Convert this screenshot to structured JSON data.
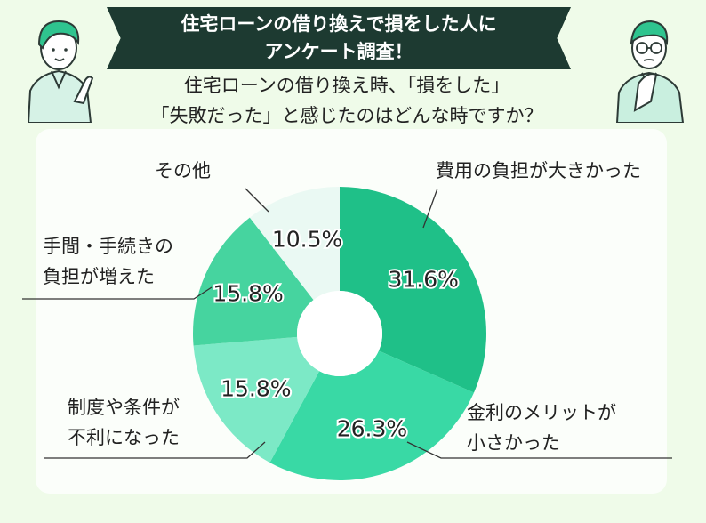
{
  "header": {
    "banner_line1": "住宅ローンの借り換えで損をした人に",
    "banner_line2": "アンケート調査！",
    "question_line1": "住宅ローンの借り換え時、「損をした」",
    "question_line2": "「失敗だった」と感じたのはどんな時ですか？"
  },
  "chart_data": {
    "type": "pie",
    "variant": "donut",
    "categories": [
      "費用の負担が大きかった",
      "金利のメリットが小さかった",
      "制度や条件が不利になった",
      "手間・手続きの負担が増えた",
      "その他"
    ],
    "values": [
      31.6,
      26.3,
      15.8,
      15.8,
      10.5
    ],
    "value_labels": [
      "31.6%",
      "26.3%",
      "15.8%",
      "15.8%",
      "10.5%"
    ],
    "colors": [
      "#1fc088",
      "#39d9a5",
      "#7ce9c6",
      "#46d49f",
      "#eaf9f3"
    ]
  },
  "labels": {
    "cost_line1": "費用の負担が大きかった",
    "rate_line1": "金利のメリットが",
    "rate_line2": "小さかった",
    "system_line1": "制度や条件が",
    "system_line2": "不利になった",
    "effort_line1": "手間・手続きの",
    "effort_line2": "負担が増えた",
    "other_line1": "その他"
  }
}
